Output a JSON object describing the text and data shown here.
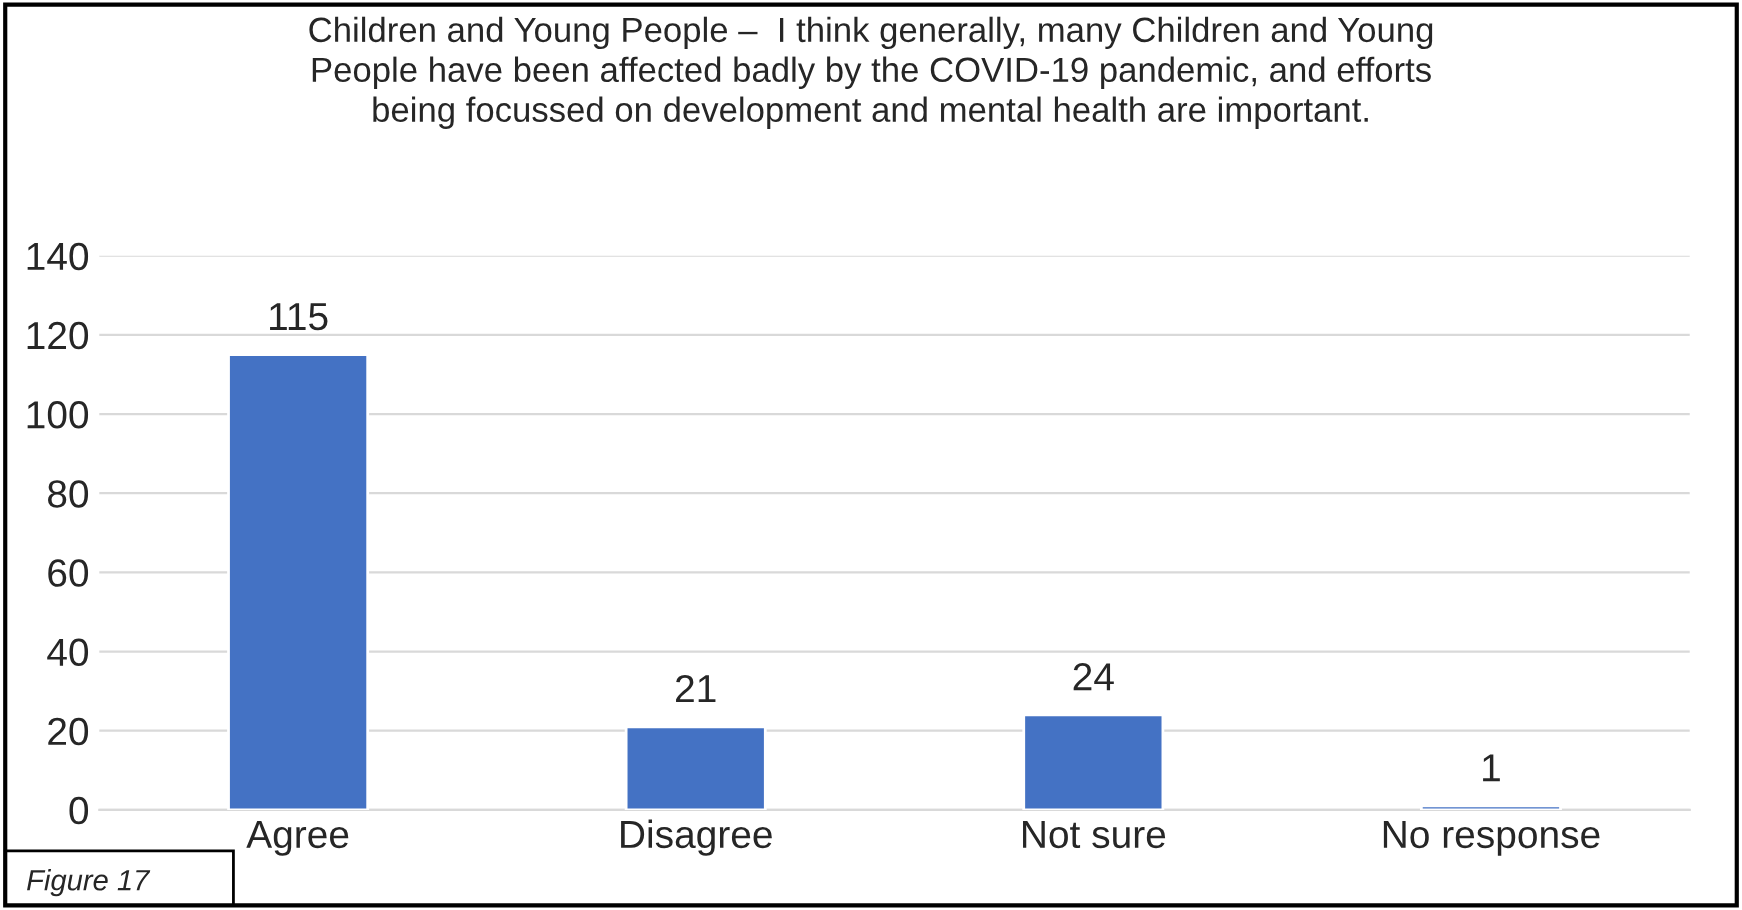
{
  "chart_data": {
    "type": "bar",
    "title": "Children and Young People –  I think generally, many Children and Young\nPeople have been affected badly by the COVID-19 pandemic, and efforts\nbeing focussed on development and mental health are important.",
    "categories": [
      "Agree",
      "Disagree",
      "Not sure",
      "No response"
    ],
    "values": [
      115,
      21,
      24,
      1
    ],
    "color": "#4472c4",
    "ylim": [
      0,
      140
    ],
    "yticks": [
      0,
      20,
      40,
      60,
      80,
      100,
      120,
      140
    ],
    "grid": "y",
    "data_labels": true,
    "annotations": [
      "Figure 17"
    ]
  }
}
